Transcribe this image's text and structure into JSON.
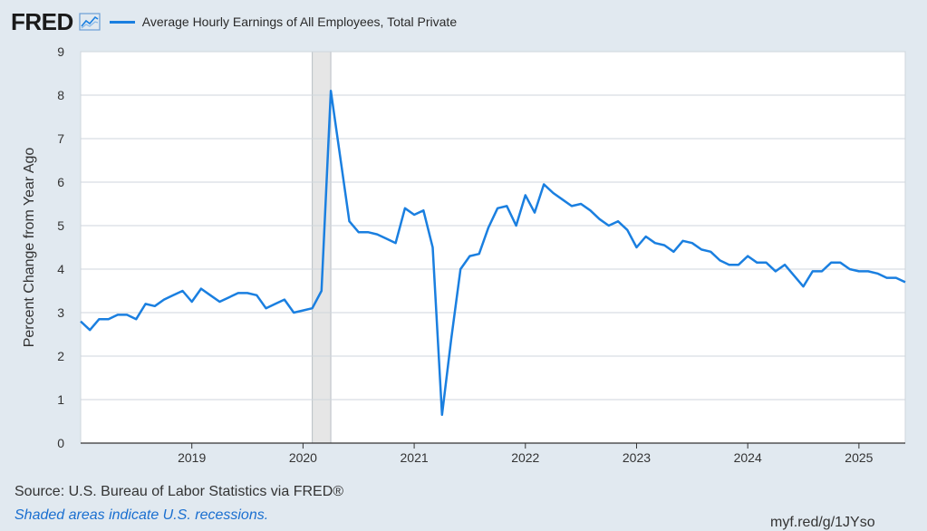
{
  "header": {
    "logo_text": "FRED",
    "logo_icon": "line-chart-icon",
    "series_label": "Average Hourly Earnings of All Employees, Total Private"
  },
  "footer": {
    "source": "Source: U.S. Bureau of Labor Statistics via FRED®",
    "note": "Shaded areas indicate U.S. recessions.",
    "shortlink": "myf.red/g/1JYso"
  },
  "colors": {
    "line": "#1a7fe0",
    "recession": "#e6e6e6",
    "background": "#e1e9f0"
  },
  "chart_data": {
    "type": "line",
    "ylabel": "Percent Change from Year Ago",
    "xlabel": "",
    "ylim": [
      0,
      9
    ],
    "yticks": [
      0,
      1,
      2,
      3,
      4,
      5,
      6,
      7,
      8,
      9
    ],
    "xlim": [
      "2018-01",
      "2025-06"
    ],
    "xticks": [
      "2019",
      "2020",
      "2021",
      "2022",
      "2023",
      "2024",
      "2025"
    ],
    "grid": true,
    "legend": "top",
    "recessions": [
      [
        "2020-02",
        "2020-04"
      ]
    ],
    "series": [
      {
        "name": "Average Hourly Earnings of All Employees, Total Private",
        "x": [
          "2018-01",
          "2018-02",
          "2018-03",
          "2018-04",
          "2018-05",
          "2018-06",
          "2018-07",
          "2018-08",
          "2018-09",
          "2018-10",
          "2018-11",
          "2018-12",
          "2019-01",
          "2019-02",
          "2019-03",
          "2019-04",
          "2019-05",
          "2019-06",
          "2019-07",
          "2019-08",
          "2019-09",
          "2019-10",
          "2019-11",
          "2019-12",
          "2020-01",
          "2020-02",
          "2020-03",
          "2020-04",
          "2020-05",
          "2020-06",
          "2020-07",
          "2020-08",
          "2020-09",
          "2020-10",
          "2020-11",
          "2020-12",
          "2021-01",
          "2021-02",
          "2021-03",
          "2021-04",
          "2021-05",
          "2021-06",
          "2021-07",
          "2021-08",
          "2021-09",
          "2021-10",
          "2021-11",
          "2021-12",
          "2022-01",
          "2022-02",
          "2022-03",
          "2022-04",
          "2022-05",
          "2022-06",
          "2022-07",
          "2022-08",
          "2022-09",
          "2022-10",
          "2022-11",
          "2022-12",
          "2023-01",
          "2023-02",
          "2023-03",
          "2023-04",
          "2023-05",
          "2023-06",
          "2023-07",
          "2023-08",
          "2023-09",
          "2023-10",
          "2023-11",
          "2023-12",
          "2024-01",
          "2024-02",
          "2024-03",
          "2024-04",
          "2024-05",
          "2024-06",
          "2024-07",
          "2024-08",
          "2024-09",
          "2024-10",
          "2024-11",
          "2024-12",
          "2025-01",
          "2025-02",
          "2025-03",
          "2025-04",
          "2025-05",
          "2025-06"
        ],
        "values": [
          2.8,
          2.6,
          2.85,
          2.85,
          2.95,
          2.95,
          2.85,
          3.2,
          3.15,
          3.3,
          3.4,
          3.5,
          3.25,
          3.55,
          3.4,
          3.25,
          3.35,
          3.45,
          3.45,
          3.4,
          3.1,
          3.2,
          3.3,
          3.0,
          3.05,
          3.1,
          3.5,
          8.1,
          6.6,
          5.1,
          4.85,
          4.85,
          4.8,
          4.7,
          4.6,
          5.4,
          5.25,
          5.35,
          4.5,
          0.65,
          2.4,
          4.0,
          4.3,
          4.35,
          4.95,
          5.4,
          5.45,
          5.0,
          5.7,
          5.3,
          5.95,
          5.75,
          5.6,
          5.45,
          5.5,
          5.35,
          5.15,
          5.0,
          5.1,
          4.9,
          4.5,
          4.75,
          4.6,
          4.55,
          4.4,
          4.65,
          4.6,
          4.45,
          4.4,
          4.2,
          4.1,
          4.1,
          4.3,
          4.15,
          4.15,
          3.95,
          4.1,
          3.85,
          3.6,
          3.95,
          3.95,
          4.15,
          4.15,
          4.0,
          3.95,
          3.95,
          3.9,
          3.8,
          3.8,
          3.7
        ]
      }
    ]
  }
}
